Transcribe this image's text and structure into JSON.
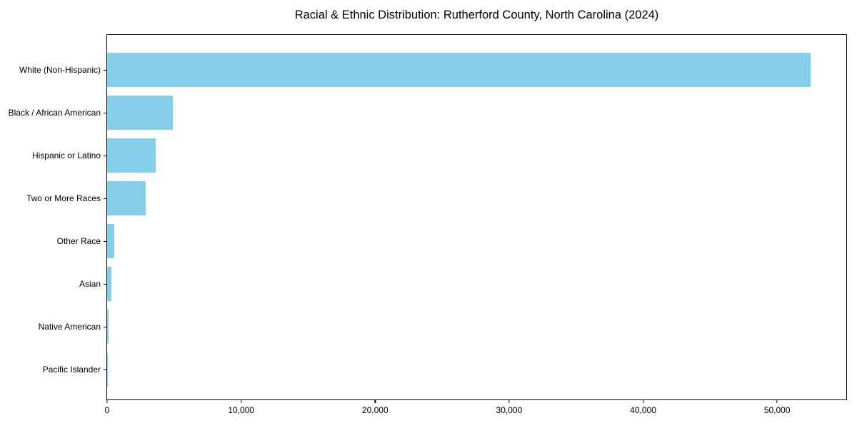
{
  "title": "Racial & Ethnic Distribution: Rutherford County, North Carolina (2024)",
  "chart_data": {
    "type": "bar",
    "orientation": "horizontal",
    "title": "Racial & Ethnic Distribution: Rutherford County, North Carolina (2024)",
    "categories": [
      "White (Non-Hispanic)",
      "Black / African American",
      "Hispanic or Latino",
      "Two or More Races",
      "Other Race",
      "Asian",
      "Native American",
      "Pacific Islander"
    ],
    "values": [
      52500,
      4900,
      3650,
      2890,
      530,
      320,
      100,
      30
    ],
    "xlabel": "",
    "ylabel": "",
    "xlim": [
      0,
      55160
    ],
    "x_ticks": [
      0,
      10000,
      20000,
      30000,
      40000,
      50000
    ],
    "x_tick_labels": [
      "0",
      "10,000",
      "20,000",
      "30,000",
      "40,000",
      "50,000"
    ],
    "grid": false,
    "legend": false
  },
  "colors": {
    "bar": "#87CEEB",
    "spine": "#000000",
    "text": "#000000",
    "background": "#ffffff"
  }
}
